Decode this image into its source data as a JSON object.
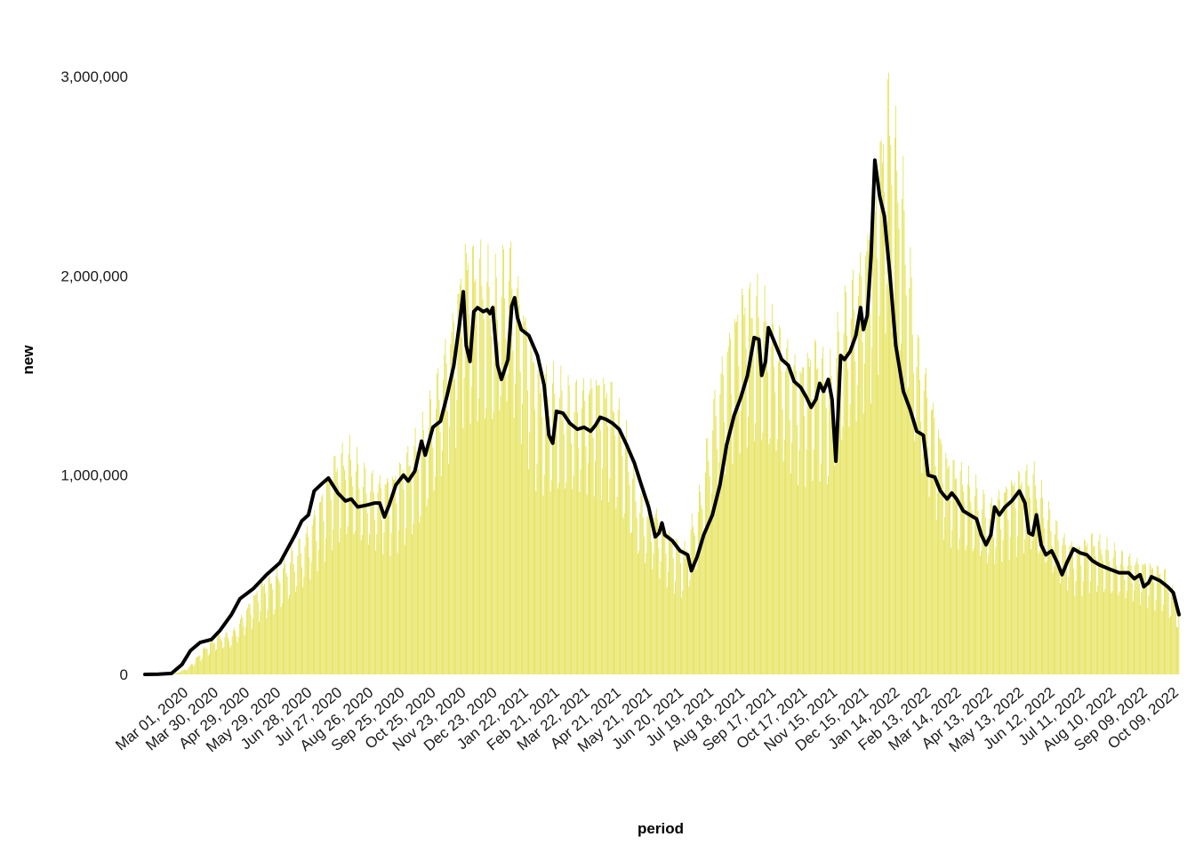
{
  "chart_data": {
    "type": "bar",
    "title": "",
    "xlabel": "period",
    "ylabel": "new",
    "ylim": [
      0,
      3200000
    ],
    "yticks": [
      0,
      1000000,
      2000000,
      3000000
    ],
    "ytick_labels": [
      "0",
      "1,000,000",
      "2,000,000",
      "3,000,000"
    ],
    "x_start_date": "2020-01-22",
    "x_end_date": "2022-10-12",
    "xtick_labels": [
      "Mar 01, 2020",
      "Mar 30, 2020",
      "Apr 29, 2020",
      "May 29, 2020",
      "Jun 28, 2020",
      "Jul 27, 2020",
      "Aug 26, 2020",
      "Sep 25, 2020",
      "Oct 25, 2020",
      "Nov 23, 2020",
      "Dec 23, 2020",
      "Jan 22, 2021",
      "Feb 21, 2021",
      "Mar 22, 2021",
      "Apr 21, 2021",
      "May 21, 2021",
      "Jun 20, 2021",
      "Jul 19, 2021",
      "Aug 18, 2021",
      "Sep 17, 2021",
      "Oct 17, 2021",
      "Nov 15, 2021",
      "Dec 15, 2021",
      "Jan 14, 2022",
      "Feb 13, 2022",
      "Mar 14, 2022",
      "Apr 13, 2022",
      "May 13, 2022",
      "Jun 12, 2022",
      "Jul 11, 2022",
      "Aug 10, 2022",
      "Sep 09, 2022",
      "Oct 09, 2022"
    ],
    "grid": false,
    "series": [
      {
        "kind": "bar",
        "color": "#e3e04a",
        "description": "daily new cases",
        "weekly_points": [
          [
            "2020-01-22",
            0
          ],
          [
            "2020-02-05",
            1000
          ],
          [
            "2020-02-19",
            3000
          ],
          [
            "2020-03-04",
            30000
          ],
          [
            "2020-03-18",
            110000
          ],
          [
            "2020-04-01",
            170000
          ],
          [
            "2020-04-15",
            180000
          ],
          [
            "2020-04-29",
            290000
          ],
          [
            "2020-05-13",
            400000
          ],
          [
            "2020-05-27",
            430000
          ],
          [
            "2020-06-10",
            520000
          ],
          [
            "2020-06-24",
            600000
          ],
          [
            "2020-07-08",
            760000
          ],
          [
            "2020-07-22",
            930000
          ],
          [
            "2020-08-05",
            980000
          ],
          [
            "2020-08-19",
            880000
          ],
          [
            "2020-09-02",
            840000
          ],
          [
            "2020-09-16",
            860000
          ],
          [
            "2020-09-30",
            950000
          ],
          [
            "2020-10-14",
            1050000
          ],
          [
            "2020-10-28",
            1250000
          ],
          [
            "2020-11-11",
            1500000
          ],
          [
            "2020-11-25",
            1850000
          ],
          [
            "2020-12-09",
            1800000
          ],
          [
            "2020-12-23",
            1700000
          ],
          [
            "2021-01-06",
            1850000
          ],
          [
            "2021-01-20",
            1600000
          ],
          [
            "2021-02-03",
            1300000
          ],
          [
            "2021-02-17",
            1280000
          ],
          [
            "2021-03-03",
            1230000
          ],
          [
            "2021-03-17",
            1240000
          ],
          [
            "2021-03-31",
            1290000
          ],
          [
            "2021-04-14",
            1250000
          ],
          [
            "2021-04-28",
            1050000
          ],
          [
            "2021-05-12",
            760000
          ],
          [
            "2021-05-26",
            720000
          ],
          [
            "2021-06-09",
            620000
          ],
          [
            "2021-06-23",
            540000
          ],
          [
            "2021-07-07",
            740000
          ],
          [
            "2021-07-21",
            1150000
          ],
          [
            "2021-08-04",
            1450000
          ],
          [
            "2021-08-18",
            1650000
          ],
          [
            "2021-09-01",
            1650000
          ],
          [
            "2021-09-15",
            1520000
          ],
          [
            "2021-09-29",
            1420000
          ],
          [
            "2021-10-13",
            1340000
          ],
          [
            "2021-10-27",
            1430000
          ],
          [
            "2021-11-10",
            1300000
          ],
          [
            "2021-11-24",
            1600000
          ],
          [
            "2021-12-08",
            1750000
          ],
          [
            "2021-12-22",
            2000000
          ],
          [
            "2022-01-05",
            2550000
          ],
          [
            "2022-01-19",
            2150000
          ],
          [
            "2022-02-02",
            1450000
          ],
          [
            "2022-02-16",
            1200000
          ],
          [
            "2022-03-02",
            950000
          ],
          [
            "2022-03-16",
            880000
          ],
          [
            "2022-03-30",
            820000
          ],
          [
            "2022-04-13",
            730000
          ],
          [
            "2022-04-27",
            810000
          ],
          [
            "2022-05-11",
            870000
          ],
          [
            "2022-05-25",
            880000
          ],
          [
            "2022-06-08",
            720000
          ],
          [
            "2022-06-22",
            600000
          ],
          [
            "2022-07-06",
            560000
          ],
          [
            "2022-07-20",
            600000
          ],
          [
            "2022-08-03",
            560000
          ],
          [
            "2022-08-17",
            520000
          ],
          [
            "2022-08-31",
            500000
          ],
          [
            "2022-09-14",
            480000
          ],
          [
            "2022-09-28",
            450000
          ],
          [
            "2022-10-12",
            300000
          ]
        ]
      },
      {
        "kind": "line",
        "color": "#000000",
        "description": "7-day moving average",
        "points": [
          [
            "2020-01-22",
            0
          ],
          [
            "2020-02-05",
            1000
          ],
          [
            "2020-02-19",
            5000
          ],
          [
            "2020-03-01",
            50000
          ],
          [
            "2020-03-10",
            120000
          ],
          [
            "2020-03-20",
            160000
          ],
          [
            "2020-04-01",
            175000
          ],
          [
            "2020-04-10",
            220000
          ],
          [
            "2020-04-22",
            300000
          ],
          [
            "2020-05-01",
            380000
          ],
          [
            "2020-05-15",
            430000
          ],
          [
            "2020-05-29",
            500000
          ],
          [
            "2020-06-12",
            560000
          ],
          [
            "2020-06-28",
            700000
          ],
          [
            "2020-07-05",
            770000
          ],
          [
            "2020-07-12",
            800000
          ],
          [
            "2020-07-18",
            920000
          ],
          [
            "2020-07-27",
            960000
          ],
          [
            "2020-08-02",
            985000
          ],
          [
            "2020-08-12",
            910000
          ],
          [
            "2020-08-20",
            870000
          ],
          [
            "2020-08-26",
            880000
          ],
          [
            "2020-09-02",
            840000
          ],
          [
            "2020-09-12",
            850000
          ],
          [
            "2020-09-20",
            860000
          ],
          [
            "2020-09-25",
            860000
          ],
          [
            "2020-09-30",
            790000
          ],
          [
            "2020-10-05",
            850000
          ],
          [
            "2020-10-12",
            950000
          ],
          [
            "2020-10-20",
            1000000
          ],
          [
            "2020-10-25",
            970000
          ],
          [
            "2020-11-01",
            1020000
          ],
          [
            "2020-11-08",
            1170000
          ],
          [
            "2020-11-12",
            1100000
          ],
          [
            "2020-11-20",
            1240000
          ],
          [
            "2020-11-28",
            1270000
          ],
          [
            "2020-12-05",
            1400000
          ],
          [
            "2020-12-12",
            1550000
          ],
          [
            "2020-12-18",
            1760000
          ],
          [
            "2020-12-22",
            1920000
          ],
          [
            "2020-12-25",
            1650000
          ],
          [
            "2020-12-29",
            1570000
          ],
          [
            "2021-01-02",
            1820000
          ],
          [
            "2021-01-06",
            1840000
          ],
          [
            "2021-01-12",
            1820000
          ],
          [
            "2021-01-16",
            1830000
          ],
          [
            "2021-01-19",
            1810000
          ],
          [
            "2021-01-22",
            1840000
          ],
          [
            "2021-01-27",
            1550000
          ],
          [
            "2021-01-31",
            1480000
          ],
          [
            "2021-02-07",
            1580000
          ],
          [
            "2021-02-11",
            1850000
          ],
          [
            "2021-02-14",
            1890000
          ],
          [
            "2021-02-17",
            1790000
          ],
          [
            "2021-02-21",
            1730000
          ],
          [
            "2021-03-01",
            1700000
          ],
          [
            "2021-03-10",
            1600000
          ],
          [
            "2021-03-17",
            1450000
          ],
          [
            "2021-03-22",
            1200000
          ],
          [
            "2021-03-26",
            1160000
          ],
          [
            "2021-03-30",
            1320000
          ],
          [
            "2021-04-06",
            1310000
          ],
          [
            "2021-04-13",
            1260000
          ],
          [
            "2021-04-21",
            1230000
          ],
          [
            "2021-04-28",
            1240000
          ],
          [
            "2021-05-05",
            1220000
          ],
          [
            "2021-05-10",
            1250000
          ],
          [
            "2021-05-15",
            1290000
          ],
          [
            "2021-05-21",
            1280000
          ],
          [
            "2021-05-28",
            1260000
          ],
          [
            "2021-06-04",
            1230000
          ],
          [
            "2021-06-12",
            1150000
          ],
          [
            "2021-06-20",
            1060000
          ],
          [
            "2021-06-28",
            940000
          ],
          [
            "2021-07-05",
            840000
          ],
          [
            "2021-07-12",
            690000
          ],
          [
            "2021-07-16",
            710000
          ],
          [
            "2021-07-19",
            760000
          ],
          [
            "2021-07-22",
            700000
          ],
          [
            "2021-07-30",
            670000
          ],
          [
            "2021-08-07",
            620000
          ],
          [
            "2021-08-15",
            600000
          ],
          [
            "2021-08-19",
            520000
          ],
          [
            "2021-08-25",
            590000
          ],
          [
            "2021-09-01",
            700000
          ],
          [
            "2021-09-10",
            800000
          ],
          [
            "2021-09-18",
            950000
          ],
          [
            "2021-09-25",
            1150000
          ],
          [
            "2021-10-03",
            1300000
          ],
          [
            "2021-10-10",
            1390000
          ],
          [
            "2021-10-17",
            1500000
          ],
          [
            "2021-10-24",
            1690000
          ],
          [
            "2021-10-29",
            1680000
          ],
          [
            "2021-11-01",
            1500000
          ],
          [
            "2021-11-05",
            1570000
          ],
          [
            "2021-11-08",
            1740000
          ],
          [
            "2021-11-15",
            1660000
          ],
          [
            "2021-11-22",
            1580000
          ],
          [
            "2021-11-29",
            1550000
          ],
          [
            "2021-12-05",
            1470000
          ],
          [
            "2021-12-12",
            1440000
          ],
          [
            "2021-12-18",
            1390000
          ],
          [
            "2021-12-23",
            1340000
          ],
          [
            "2021-12-28",
            1380000
          ],
          [
            "2022-01-01",
            1460000
          ],
          [
            "2022-01-05",
            1420000
          ],
          [
            "2022-01-10",
            1480000
          ],
          [
            "2022-01-14",
            1380000
          ],
          [
            "2022-01-18",
            1070000
          ],
          [
            "2022-01-23",
            1600000
          ],
          [
            "2022-01-27",
            1580000
          ],
          [
            "2022-02-02",
            1620000
          ],
          [
            "2022-02-08",
            1700000
          ],
          [
            "2022-02-13",
            1840000
          ],
          [
            "2022-02-16",
            1730000
          ],
          [
            "2022-02-20",
            1800000
          ],
          [
            "2022-02-24",
            2100000
          ],
          [
            "2022-02-28",
            2580000
          ],
          [
            "2022-03-05",
            2400000
          ],
          [
            "2022-03-10",
            2300000
          ],
          [
            "2022-03-16",
            2000000
          ],
          [
            "2022-03-22",
            1650000
          ],
          [
            "2022-03-30",
            1420000
          ],
          [
            "2022-04-06",
            1330000
          ],
          [
            "2022-04-13",
            1220000
          ],
          [
            "2022-04-20",
            1200000
          ],
          [
            "2022-04-25",
            1000000
          ],
          [
            "2022-05-02",
            990000
          ],
          [
            "2022-05-08",
            920000
          ],
          [
            "2022-05-15",
            880000
          ],
          [
            "2022-05-20",
            910000
          ],
          [
            "2022-05-25",
            880000
          ],
          [
            "2022-06-01",
            820000
          ],
          [
            "2022-06-08",
            800000
          ],
          [
            "2022-06-15",
            780000
          ],
          [
            "2022-06-20",
            700000
          ],
          [
            "2022-06-25",
            650000
          ],
          [
            "2022-06-30",
            700000
          ],
          [
            "2022-07-04",
            840000
          ],
          [
            "2022-07-09",
            800000
          ],
          [
            "2022-07-15",
            840000
          ],
          [
            "2022-07-22",
            870000
          ],
          [
            "2022-07-30",
            920000
          ],
          [
            "2022-08-05",
            860000
          ],
          [
            "2022-08-09",
            710000
          ],
          [
            "2022-08-13",
            700000
          ],
          [
            "2022-08-17",
            800000
          ],
          [
            "2022-08-22",
            650000
          ],
          [
            "2022-08-27",
            600000
          ],
          [
            "2022-09-02",
            620000
          ],
          [
            "2022-09-08",
            560000
          ],
          [
            "2022-09-13",
            500000
          ],
          [
            "2022-09-18",
            560000
          ],
          [
            "2022-09-25",
            630000
          ],
          [
            "2022-10-02",
            610000
          ],
          [
            "2022-10-09",
            600000
          ],
          [
            "2022-10-15",
            570000
          ],
          [
            "2022-10-22",
            550000
          ],
          [
            "2022-11-01",
            530000
          ],
          [
            "2022-11-12",
            510000
          ],
          [
            "2022-11-22",
            510000
          ],
          [
            "2022-11-28",
            480000
          ],
          [
            "2022-12-04",
            500000
          ],
          [
            "2022-12-08",
            440000
          ],
          [
            "2022-12-13",
            460000
          ],
          [
            "2022-12-16",
            490000
          ],
          [
            "2022-12-25",
            470000
          ],
          [
            "2023-01-02",
            440000
          ],
          [
            "2023-01-08",
            410000
          ],
          [
            "2023-01-14",
            300000
          ]
        ]
      }
    ]
  }
}
